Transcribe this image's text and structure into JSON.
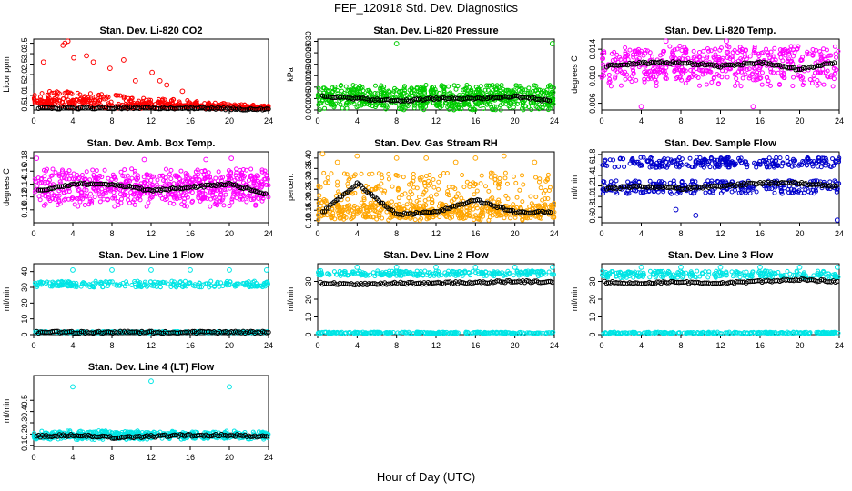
{
  "figure": {
    "title": "FEF_120918  Std. Dev. Diagnostics",
    "xlabel": "Hour of Day (UTC)"
  },
  "chart_data": [
    {
      "type": "scatter",
      "title": "Stan. Dev. Li-820 CO2",
      "ylabel": "Licor ppm",
      "xlim": [
        0,
        24
      ],
      "ylim": [
        0.3,
        3.7
      ],
      "xticks": [
        0,
        4,
        8,
        12,
        16,
        20,
        24
      ],
      "yticks": [
        0.5,
        1.0,
        1.5,
        2.0,
        2.5,
        3.0,
        3.5
      ],
      "ytick_labels": [
        "0.5",
        "1.0",
        "1.5",
        "2.0",
        "2.5",
        "3.0",
        "3.5"
      ],
      "series": [
        {
          "color": "#ff0000",
          "n": 480,
          "bands": [
            [
              0.5,
              1.3
            ],
            [
              0.4,
              0.9
            ]
          ],
          "x": [
            1,
            3,
            3.2,
            3.5,
            4.1,
            5.4,
            6.1,
            7.8,
            9.2,
            10.4,
            12.1,
            12.9,
            13.6,
            15.2
          ],
          "y": [
            2.6,
            3.4,
            3.5,
            3.6,
            2.8,
            2.9,
            2.6,
            2.3,
            2.7,
            1.7,
            2.1,
            1.7,
            1.5,
            1.2
          ],
          "x_end": 24,
          "y_end": 0.3
        },
        {
          "color": "#000000",
          "x": [
            0.5,
            4,
            8,
            12,
            16,
            20,
            24
          ],
          "y": [
            0.4,
            0.4,
            0.4,
            0.4,
            0.4,
            0.35,
            0.35
          ]
        }
      ]
    },
    {
      "type": "scatter",
      "title": "Stan. Dev. Li-820 Pressure",
      "ylabel": "kPa",
      "xlim": [
        0,
        24
      ],
      "ylim": [
        0,
        0.031
      ],
      "xticks": [
        0,
        4,
        8,
        12,
        16,
        20,
        24
      ],
      "yticks": [
        0.0,
        0.005,
        0.01,
        0.015,
        0.02,
        0.025,
        0.03
      ],
      "ytick_labels": [
        "0.000",
        "0.005",
        "0.010",
        "0.015",
        "0.020",
        "0.025",
        "0.030"
      ],
      "series": [
        {
          "color": "#00cc00",
          "n": 700,
          "bands": [
            [
              0.0,
              0.011
            ],
            [
              0.002,
              0.009
            ]
          ],
          "x": [
            8,
            23.8
          ],
          "y": [
            0.029,
            0.029
          ]
        },
        {
          "color": "#000000",
          "x": [
            0.5,
            4,
            8,
            12,
            16,
            20,
            23.5
          ],
          "y": [
            0.006,
            0.005,
            0.004,
            0.005,
            0.005,
            0.006,
            0.004
          ]
        }
      ]
    },
    {
      "type": "scatter",
      "title": "Stan. Dev. Li-820 Temp.",
      "ylabel": "degrees C",
      "xlim": [
        0,
        24
      ],
      "ylim": [
        0.005,
        0.0155
      ],
      "xticks": [
        0,
        4,
        8,
        12,
        16,
        20,
        24
      ],
      "yticks": [
        0.006,
        0.01,
        0.014
      ],
      "ytick_labels": [
        "0.006",
        "0.010",
        "0.014"
      ],
      "series": [
        {
          "color": "#ff00ff",
          "n": 520,
          "bands": [
            [
              0.0085,
              0.0145
            ],
            [
              0.0095,
              0.014
            ]
          ],
          "x": [
            4,
            6.5,
            15.3,
            12.6
          ],
          "y": [
            0.0055,
            0.0152,
            0.0055,
            0.0152
          ]
        },
        {
          "color": "#000000",
          "x": [
            0.5,
            4,
            8,
            12,
            16,
            20,
            23.5
          ],
          "y": [
            0.0115,
            0.012,
            0.012,
            0.0115,
            0.012,
            0.011,
            0.012
          ]
        }
      ]
    },
    {
      "type": "scatter",
      "title": "Stan. Dev. Amb. Box Temp.",
      "ylabel": "degrees C",
      "xlim": [
        0,
        24
      ],
      "ylim": [
        0.08,
        0.19
      ],
      "xticks": [
        0,
        4,
        8,
        12,
        16,
        20,
        24
      ],
      "yticks": [
        0.1,
        0.12,
        0.14,
        0.16,
        0.18
      ],
      "ytick_labels": [
        "0.10",
        "0.12",
        "0.14",
        "0.16",
        "0.18"
      ],
      "series": [
        {
          "color": "#ff00ff",
          "n": 620,
          "bands": [
            [
              0.105,
              0.165
            ],
            [
              0.115,
              0.155
            ]
          ],
          "x": [
            0.3,
            11.3,
            17.6,
            20.2
          ],
          "y": [
            0.18,
            0.178,
            0.178,
            0.18
          ]
        },
        {
          "color": "#000000",
          "x": [
            0.5,
            4,
            8,
            12,
            16,
            20,
            23.7
          ],
          "y": [
            0.13,
            0.14,
            0.14,
            0.13,
            0.135,
            0.14,
            0.125
          ]
        }
      ]
    },
    {
      "type": "scatter",
      "title": "Stan. Dev. Gas Stream RH",
      "ylabel": "percent",
      "xlim": [
        0,
        24
      ],
      "ylim": [
        0.09,
        0.43
      ],
      "xticks": [
        0,
        4,
        8,
        12,
        16,
        20,
        24
      ],
      "yticks": [
        0.1,
        0.15,
        0.2,
        0.25,
        0.3,
        0.35,
        0.4
      ],
      "ytick_labels": [
        "0.10",
        "0.15",
        "0.20",
        "0.25",
        "0.30",
        "0.35",
        "0.40"
      ],
      "series": [
        {
          "color": "#ffa500",
          "n": 650,
          "bands": [
            [
              0.1,
              0.33
            ],
            [
              0.11,
              0.18
            ]
          ],
          "x": [
            0.5,
            2,
            4,
            8,
            11,
            14,
            16,
            18.9,
            22
          ],
          "y": [
            0.42,
            0.38,
            0.41,
            0.4,
            0.4,
            0.38,
            0.4,
            0.41,
            0.38
          ]
        },
        {
          "color": "#000000",
          "x": [
            0.5,
            4,
            8,
            12,
            16,
            20,
            23.6
          ],
          "y": [
            0.14,
            0.28,
            0.13,
            0.14,
            0.2,
            0.14,
            0.14
          ]
        }
      ]
    },
    {
      "type": "scatter",
      "title": "Stan. Dev. Sample Flow",
      "ylabel": "ml/min",
      "xlim": [
        0,
        24
      ],
      "ylim": [
        0.5,
        1.85
      ],
      "xticks": [
        0,
        4,
        8,
        12,
        16,
        20,
        24
      ],
      "yticks": [
        0.6,
        0.8,
        1.0,
        1.2,
        1.4,
        1.6,
        1.8
      ],
      "ytick_labels": [
        "0.6",
        "0.8",
        "1.0",
        "1.2",
        "1.4",
        "1.6",
        "1.8"
      ],
      "series": [
        {
          "color": "#0000cc",
          "n": 520,
          "bands": [
            [
              1.05,
              1.3
            ],
            [
              1.55,
              1.75
            ]
          ],
          "x": [
            7.5,
            9.5,
            23.8
          ],
          "y": [
            0.75,
            0.64,
            0.55
          ]
        },
        {
          "color": "#000000",
          "x": [
            0.5,
            4,
            8,
            12,
            16,
            20,
            23.7
          ],
          "y": [
            1.15,
            1.2,
            1.15,
            1.2,
            1.25,
            1.25,
            1.2
          ]
        }
      ]
    },
    {
      "type": "scatter",
      "title": "Stan. Dev. Line 1 Flow",
      "ylabel": "ml/min",
      "xlim": [
        0,
        24
      ],
      "ylim": [
        0,
        45
      ],
      "xticks": [
        0,
        4,
        8,
        12,
        16,
        20,
        24
      ],
      "yticks": [
        0,
        10,
        20,
        30,
        40
      ],
      "ytick_labels": [
        "0",
        "10",
        "20",
        "30",
        "40"
      ],
      "series": [
        {
          "color": "#00e5e5",
          "n": 500,
          "bands": [
            [
              30,
              34
            ],
            [
              1,
              2
            ]
          ],
          "x": [
            4,
            8,
            12,
            16,
            20,
            23.8
          ],
          "y": [
            41,
            41,
            41,
            41,
            41,
            41
          ]
        },
        {
          "color": "#000000",
          "x": [
            0.3,
            24
          ],
          "y": [
            1.5,
            1.5
          ]
        }
      ]
    },
    {
      "type": "scatter",
      "title": "Stan. Dev. Line 2 Flow",
      "ylabel": "ml/min",
      "xlim": [
        0,
        24
      ],
      "ylim": [
        0,
        40
      ],
      "xticks": [
        0,
        4,
        8,
        12,
        16,
        20,
        24
      ],
      "yticks": [
        0,
        10,
        20,
        30
      ],
      "ytick_labels": [
        "0",
        "10",
        "20",
        "30"
      ],
      "series": [
        {
          "color": "#00e5e5",
          "n": 500,
          "bands": [
            [
              33,
              36
            ],
            [
              0.5,
              1.5
            ]
          ],
          "x": [
            0.3,
            4,
            8,
            12,
            16,
            20,
            23.8
          ],
          "y": [
            36,
            38,
            38,
            38,
            38,
            38,
            38
          ]
        },
        {
          "color": "#000000",
          "x": [
            0.3,
            4,
            8,
            12,
            16,
            20,
            23.8
          ],
          "y": [
            29,
            28.5,
            29,
            29,
            29.5,
            30,
            29.5
          ]
        }
      ]
    },
    {
      "type": "scatter",
      "title": "Stan. Dev. Line 3 Flow",
      "ylabel": "ml/min",
      "xlim": [
        0,
        24
      ],
      "ylim": [
        0,
        40
      ],
      "xticks": [
        0,
        4,
        8,
        12,
        16,
        20,
        24
      ],
      "yticks": [
        0,
        10,
        20,
        30
      ],
      "ytick_labels": [
        "0",
        "10",
        "20",
        "30"
      ],
      "series": [
        {
          "color": "#00e5e5",
          "n": 500,
          "bands": [
            [
              32,
              36
            ],
            [
              0.5,
              1.5
            ]
          ],
          "x": [
            4,
            8,
            12,
            16,
            20,
            23.8
          ],
          "y": [
            38,
            38,
            38,
            38,
            38,
            38
          ]
        },
        {
          "color": "#000000",
          "x": [
            0.3,
            4,
            8,
            12,
            16,
            20,
            23.8
          ],
          "y": [
            29.5,
            29,
            29.5,
            29,
            30,
            31,
            30
          ]
        }
      ]
    },
    {
      "type": "scatter",
      "title": "Stan. Dev. Line 4 (LT) Flow",
      "ylabel": "ml/min",
      "xlim": [
        0,
        24
      ],
      "ylim": [
        0.09,
        0.72
      ],
      "xticks": [
        0,
        4,
        8,
        12,
        16,
        20,
        24
      ],
      "yticks": [
        0.1,
        0.2,
        0.3,
        0.4,
        0.5
      ],
      "ytick_labels": [
        "0.1",
        "0.2",
        "0.3",
        "0.4",
        "0.5"
      ],
      "series": [
        {
          "color": "#00e5e5",
          "n": 480,
          "bands": [
            [
              0.15,
              0.23
            ],
            [
              0.16,
              0.22
            ]
          ],
          "x": [
            4,
            12,
            20
          ],
          "y": [
            0.62,
            0.67,
            0.62
          ]
        },
        {
          "color": "#000000",
          "x": [
            0.3,
            4,
            8,
            12,
            16,
            20,
            23.8
          ],
          "y": [
            0.18,
            0.19,
            0.17,
            0.18,
            0.19,
            0.19,
            0.18
          ]
        }
      ]
    }
  ]
}
